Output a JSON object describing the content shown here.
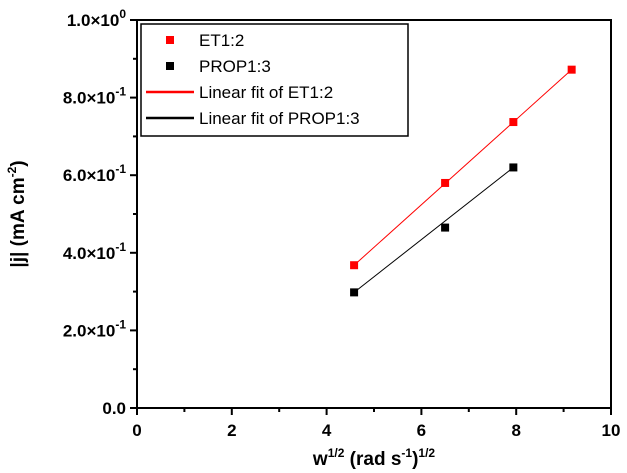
{
  "chart_data": {
    "type": "scatter",
    "xlabel": {
      "base": "w",
      "exp": "1/2",
      "mid": " (rad s",
      "mid_exp": "-1",
      "close": ")",
      "close_exp": "1/2"
    },
    "ylabel": {
      "base": "|j| (mA cm",
      "exp": "-2",
      "close": ")"
    },
    "xlim": [
      0,
      10
    ],
    "ylim": [
      0,
      1.0
    ],
    "x_ticks": [
      "0",
      "2",
      "4",
      "6",
      "8",
      "10"
    ],
    "y_ticks": [
      {
        "value": 0.0,
        "mant": "0.0",
        "exp": ""
      },
      {
        "value": 0.2,
        "mant": "2.0×10",
        "exp": "-1"
      },
      {
        "value": 0.4,
        "mant": "4.0×10",
        "exp": "-1"
      },
      {
        "value": 0.6,
        "mant": "6.0×10",
        "exp": "-1"
      },
      {
        "value": 0.8,
        "mant": "8.0×10",
        "exp": "-1"
      },
      {
        "value": 1.0,
        "mant": "1.0×10",
        "exp": "0"
      }
    ],
    "grid": false,
    "legend_position": "top-left",
    "series": [
      {
        "name": "ET1:2",
        "color": "#ff0000",
        "marker": "square",
        "x": [
          4.58,
          6.5,
          7.94,
          9.17
        ],
        "y": [
          0.368,
          0.58,
          0.737,
          0.872
        ]
      },
      {
        "name": "PROP1:3",
        "color": "#000000",
        "marker": "square",
        "x": [
          4.58,
          6.5,
          7.94
        ],
        "y": [
          0.298,
          0.465,
          0.62
        ]
      }
    ],
    "fits": [
      {
        "name": "Linear fit of ET1:2",
        "color": "#ff0000",
        "x_range": [
          4.58,
          9.17
        ],
        "y_range": [
          0.368,
          0.872
        ]
      },
      {
        "name": "Linear fit of PROP1:3",
        "color": "#000000",
        "x_range": [
          4.58,
          7.94
        ],
        "y_range": [
          0.298,
          0.62
        ]
      }
    ]
  }
}
